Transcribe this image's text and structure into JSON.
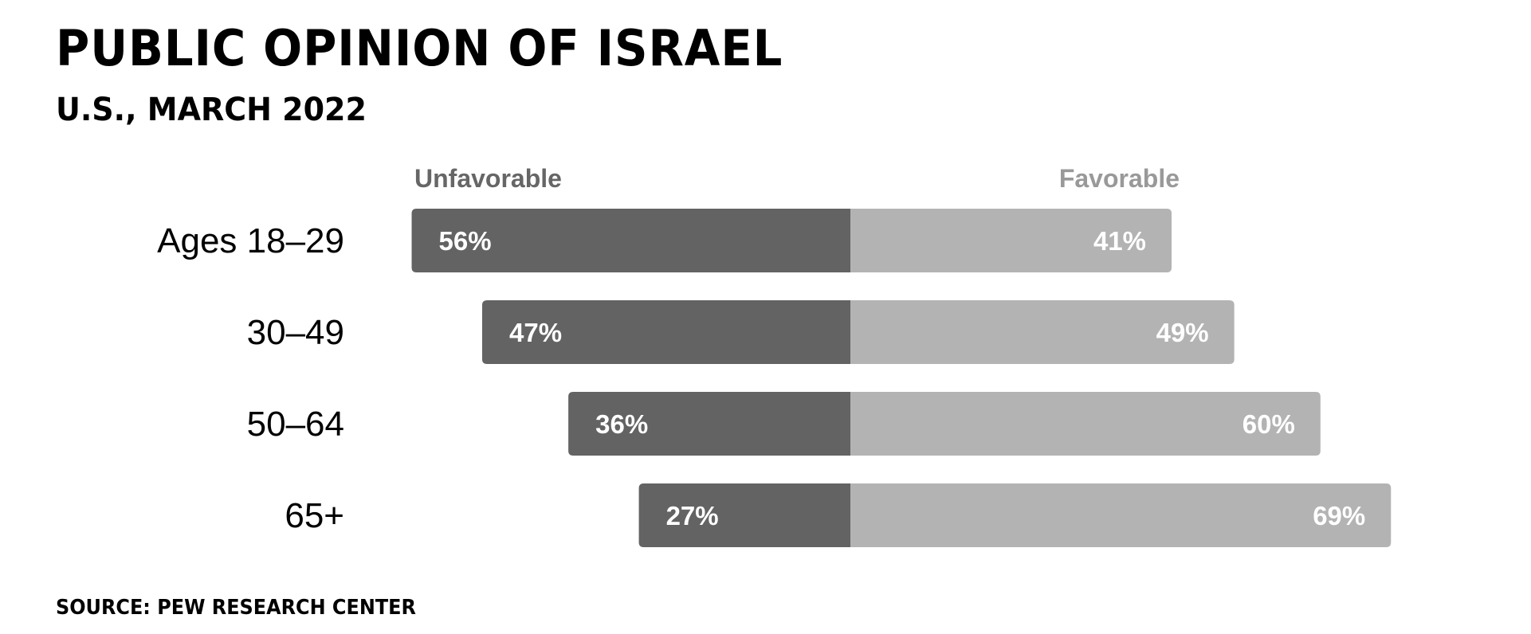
{
  "title": "PUBLIC OPINION OF ISRAEL",
  "subtitle": "U.S., MARCH 2022",
  "source": "SOURCE: PEW RESEARCH CENTER",
  "chart_data": {
    "type": "bar",
    "orientation": "horizontal-diverging",
    "categories": [
      "Ages 18–29",
      "30–49",
      "50–64",
      "65+"
    ],
    "series": [
      {
        "name": "Unfavorable",
        "values": [
          56,
          47,
          36,
          27
        ],
        "value_labels": [
          "56%",
          "47%",
          "36%",
          "27%"
        ],
        "color": "#636363"
      },
      {
        "name": "Favorable",
        "values": [
          41,
          49,
          60,
          69
        ],
        "value_labels": [
          "41%",
          "49%",
          "60%",
          "69%"
        ],
        "color": "#b3b3b3"
      }
    ],
    "legend_colors": {
      "Unfavorable": "#666666",
      "Favorable": "#999999"
    },
    "unit": "%",
    "grid": false,
    "legend_placement": "top"
  }
}
